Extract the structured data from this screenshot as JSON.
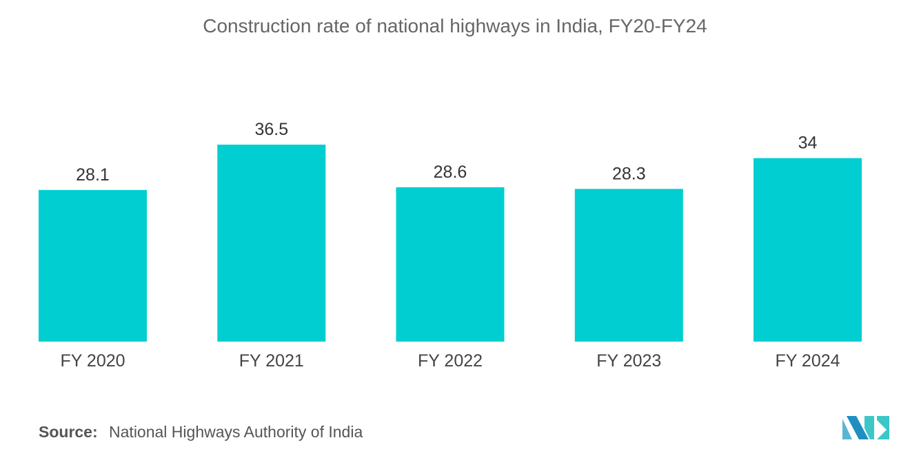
{
  "chart_data": {
    "type": "bar",
    "title": "Construction rate of national highways in India,  FY20-FY24",
    "categories": [
      "FY 2020",
      "FY 2021",
      "FY 2022",
      "FY 2023",
      "FY 2024"
    ],
    "values": [
      28.1,
      36.5,
      28.6,
      28.3,
      34
    ],
    "value_labels": [
      "28.1",
      "36.5",
      "28.6",
      "28.3",
      "34"
    ],
    "xlabel": "",
    "ylabel": "",
    "ylim": [
      0,
      36.5
    ],
    "grid": false,
    "legend": "none",
    "bar_color": "#00CED1"
  },
  "source": {
    "label": "Source:",
    "text": "National Highways Authority of India"
  },
  "logo": {
    "icon": "mordor-intelligence-logo-icon",
    "colors": [
      "#5AB4D6",
      "#1F8FBF",
      "#3CC6C8"
    ]
  }
}
